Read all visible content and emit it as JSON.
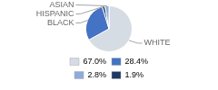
{
  "chart_data": {
    "type": "pie",
    "categories": [
      "WHITE",
      "BLACK",
      "HISPANIC",
      "ASIAN"
    ],
    "values": [
      67.0,
      28.4,
      1.9,
      2.8
    ],
    "colors": [
      "#d6dce4",
      "#4472c4",
      "#1f3864",
      "#8faadc"
    ],
    "legend": "bottom",
    "legend_items": [
      {
        "label": "67.0%",
        "value": 67.0,
        "color": "#d6dce4"
      },
      {
        "label": "28.4%",
        "value": 28.4,
        "color": "#4472c4"
      },
      {
        "label": "2.8%",
        "value": 2.8,
        "color": "#8faadc"
      },
      {
        "label": "1.9%",
        "value": 1.9,
        "color": "#1f3864"
      }
    ]
  }
}
